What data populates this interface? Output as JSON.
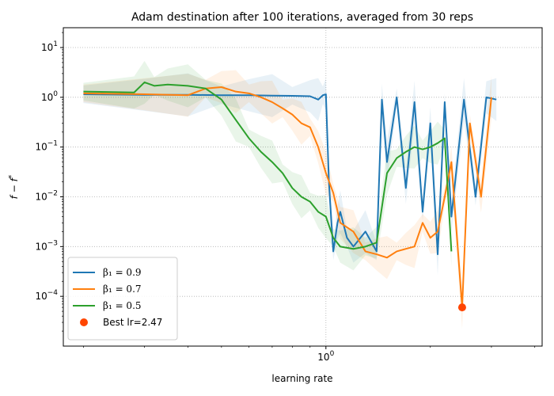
{
  "chart_data": {
    "type": "line",
    "title": "Adam destination after 100 iterations, averaged from 30 reps",
    "xlabel": "learning rate",
    "ylabel": "f − f*",
    "xscale": "log",
    "yscale": "log",
    "xlim": [
      0.175,
      4.2
    ],
    "ylim": [
      1e-05,
      25
    ],
    "x_major_ticks": [
      {
        "value": 1,
        "label": "10^0"
      }
    ],
    "y_ticks": [
      {
        "value": 0.0001,
        "label": "10^-4"
      },
      {
        "value": 0.001,
        "label": "10^-3"
      },
      {
        "value": 0.01,
        "label": "10^-2"
      },
      {
        "value": 0.1,
        "label": "10^-1"
      },
      {
        "value": 1,
        "label": "10^0"
      },
      {
        "value": 10,
        "label": "10^1"
      }
    ],
    "grid": true,
    "legend_position": "lower-left",
    "series": [
      {
        "name": "β1 = 0.9",
        "color": "#1f77b4",
        "x": [
          0.2,
          0.3,
          0.4,
          0.5,
          0.6,
          0.7,
          0.8,
          0.9,
          0.95,
          0.98,
          1.0,
          1.02,
          1.05,
          1.08,
          1.1,
          1.15,
          1.2,
          1.3,
          1.4,
          1.45,
          1.5,
          1.6,
          1.7,
          1.8,
          1.9,
          2.0,
          2.1,
          2.2,
          2.3,
          2.5,
          2.7,
          2.9,
          3.1
        ],
        "y": [
          1.15,
          1.12,
          1.12,
          1.1,
          1.1,
          1.08,
          1.07,
          1.05,
          0.9,
          1.1,
          1.15,
          0.02,
          0.0008,
          0.003,
          0.005,
          0.0015,
          0.001,
          0.002,
          0.0008,
          0.9,
          0.05,
          1.0,
          0.015,
          0.8,
          0.005,
          0.3,
          0.0007,
          0.8,
          0.004,
          0.9,
          0.01,
          1.0,
          0.9
        ]
      },
      {
        "name": "β1 = 0.7",
        "color": "#ff7f0e",
        "x": [
          0.2,
          0.3,
          0.4,
          0.45,
          0.5,
          0.55,
          0.6,
          0.65,
          0.7,
          0.75,
          0.8,
          0.85,
          0.9,
          0.95,
          1.0,
          1.05,
          1.1,
          1.2,
          1.3,
          1.4,
          1.5,
          1.6,
          1.7,
          1.8,
          1.9,
          2.0,
          2.1,
          2.2,
          2.3,
          2.47,
          2.6,
          2.8,
          3.0
        ],
        "y": [
          1.2,
          1.15,
          1.1,
          1.5,
          1.6,
          1.3,
          1.2,
          1.0,
          0.8,
          0.6,
          0.45,
          0.3,
          0.25,
          0.1,
          0.03,
          0.012,
          0.003,
          0.002,
          0.0008,
          0.0007,
          0.0006,
          0.0008,
          0.0009,
          0.001,
          0.003,
          0.0015,
          0.002,
          0.01,
          0.05,
          6e-05,
          0.3,
          0.01,
          1.0
        ]
      },
      {
        "name": "β1 = 0.5",
        "color": "#2ca02c",
        "x": [
          0.2,
          0.28,
          0.3,
          0.32,
          0.35,
          0.4,
          0.45,
          0.5,
          0.55,
          0.6,
          0.65,
          0.7,
          0.75,
          0.8,
          0.85,
          0.9,
          0.95,
          1.0,
          1.05,
          1.1,
          1.2,
          1.3,
          1.4,
          1.5,
          1.6,
          1.7,
          1.8,
          1.9,
          2.0,
          2.1,
          2.2,
          2.3
        ],
        "y": [
          1.3,
          1.25,
          2.0,
          1.7,
          1.8,
          1.7,
          1.5,
          0.9,
          0.35,
          0.15,
          0.08,
          0.05,
          0.03,
          0.015,
          0.01,
          0.008,
          0.005,
          0.004,
          0.0015,
          0.001,
          0.0009,
          0.001,
          0.0012,
          0.03,
          0.06,
          0.08,
          0.1,
          0.09,
          0.1,
          0.12,
          0.15,
          0.0008
        ]
      }
    ],
    "highlight": {
      "name": "Best lr=2.47",
      "color": "#ff4500",
      "x": 2.47,
      "y": 6e-05
    }
  },
  "legend": {
    "items": [
      {
        "label": "β₁ = 0.9",
        "color": "#1f77b4",
        "kind": "line"
      },
      {
        "label": "β₁ = 0.7",
        "color": "#ff7f0e",
        "kind": "line"
      },
      {
        "label": "β₁ = 0.5",
        "color": "#2ca02c",
        "kind": "line"
      },
      {
        "label": "Best lr=2.47",
        "color": "#ff4500",
        "kind": "marker"
      }
    ]
  }
}
